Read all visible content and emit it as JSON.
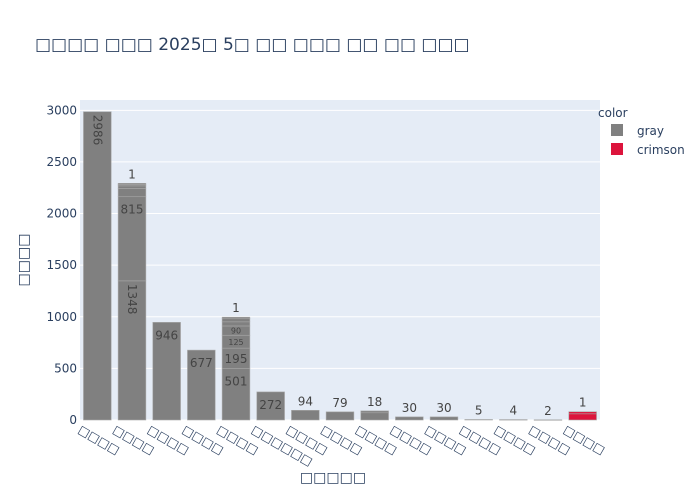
{
  "chart_data": {
    "type": "bar",
    "title": "□□□□ □□□ 2025□ 5□ □□ □□□ □□ □□ □□□",
    "xlabel": "□□□□□",
    "ylabel": "□□□□",
    "ylim": [
      0,
      3100
    ],
    "yticks": [
      0,
      500,
      1000,
      1500,
      2000,
      2500,
      3000
    ],
    "categories": [
      "□□□□",
      "□□□□",
      "□□□□",
      "□□□□",
      "□□□□",
      "□□□□□□",
      "□□□□",
      "□□□□",
      "□□□□",
      "□□□□",
      "□□□□",
      "□□□□",
      "□□□□",
      "□□□□",
      "□□□□"
    ],
    "colors": {
      "gray": "#808080",
      "crimson": "#dc143c",
      "plot_bg": "#e5ecf6",
      "grid": "#ffffff",
      "text": "#2a3f5f",
      "segment_edge": "#a8a8a8"
    },
    "legend": {
      "title": "color",
      "placement": "right",
      "items": [
        {
          "label": "gray",
          "color": "#808080"
        },
        {
          "label": "crimson",
          "color": "#dc143c"
        }
      ]
    },
    "bars": [
      {
        "color": "gray",
        "segments": [
          2986
        ],
        "labels": [
          "2986"
        ],
        "vertical_labels": [
          true
        ],
        "top_label": ""
      },
      {
        "color": "gray",
        "segments": [
          1348,
          815,
          80,
          25,
          15,
          10
        ],
        "labels": [
          "1348",
          "815",
          "",
          "",
          "",
          ""
        ],
        "vertical_labels": [
          true,
          false,
          false,
          false,
          false,
          false
        ],
        "top_label": "1"
      },
      {
        "color": "gray",
        "segments": [
          946
        ],
        "labels": [
          "946"
        ],
        "vertical_labels": [
          false
        ],
        "top_label": ""
      },
      {
        "color": "gray",
        "segments": [
          677
        ],
        "labels": [
          "677"
        ],
        "vertical_labels": [
          false
        ],
        "top_label": ""
      },
      {
        "color": "gray",
        "segments": [
          501,
          195,
          125,
          90,
          40,
          30,
          15
        ],
        "labels": [
          "501",
          "195",
          "125",
          "90",
          "",
          "",
          ""
        ],
        "vertical_labels": [
          false,
          false,
          false,
          false,
          false,
          false,
          false
        ],
        "top_label": "1"
      },
      {
        "color": "gray",
        "segments": [
          272
        ],
        "labels": [
          "272"
        ],
        "vertical_labels": [
          false
        ],
        "top_label": ""
      },
      {
        "color": "gray",
        "segments": [
          94
        ],
        "labels": [
          ""
        ],
        "vertical_labels": [
          false
        ],
        "top_label": "94"
      },
      {
        "color": "gray",
        "segments": [
          79
        ],
        "labels": [
          ""
        ],
        "vertical_labels": [
          false
        ],
        "top_label": "79"
      },
      {
        "color": "gray",
        "segments": [
          70,
          18
        ],
        "labels": [
          "",
          ""
        ],
        "vertical_labels": [
          false,
          false
        ],
        "top_label": "18"
      },
      {
        "color": "gray",
        "segments": [
          30
        ],
        "labels": [
          ""
        ],
        "vertical_labels": [
          false
        ],
        "top_label": "30"
      },
      {
        "color": "gray",
        "segments": [
          30
        ],
        "labels": [
          ""
        ],
        "vertical_labels": [
          false
        ],
        "top_label": "30"
      },
      {
        "color": "gray",
        "segments": [
          5
        ],
        "labels": [
          ""
        ],
        "vertical_labels": [
          false
        ],
        "top_label": "5"
      },
      {
        "color": "gray",
        "segments": [
          4
        ],
        "labels": [
          ""
        ],
        "vertical_labels": [
          false
        ],
        "top_label": "4"
      },
      {
        "color": "gray",
        "segments": [
          2
        ],
        "labels": [
          ""
        ],
        "vertical_labels": [
          false
        ],
        "top_label": "2"
      },
      {
        "color": "crimson",
        "segments": [
          60,
          20
        ],
        "labels": [
          "",
          ""
        ],
        "vertical_labels": [
          false,
          false
        ],
        "top_label": "1"
      }
    ]
  }
}
